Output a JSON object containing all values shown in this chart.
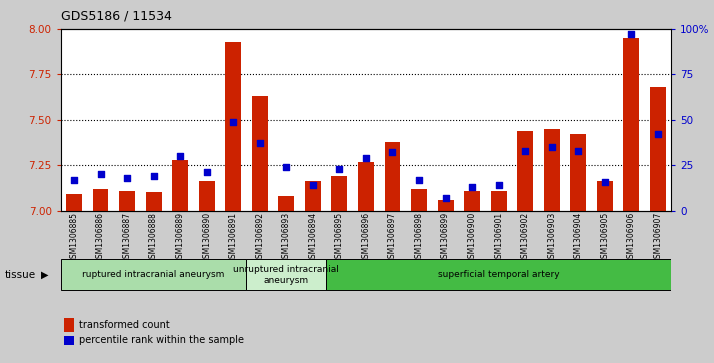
{
  "title": "GDS5186 / 11534",
  "samples": [
    "GSM1306885",
    "GSM1306886",
    "GSM1306887",
    "GSM1306888",
    "GSM1306889",
    "GSM1306890",
    "GSM1306891",
    "GSM1306892",
    "GSM1306893",
    "GSM1306894",
    "GSM1306895",
    "GSM1306896",
    "GSM1306897",
    "GSM1306898",
    "GSM1306899",
    "GSM1306900",
    "GSM1306901",
    "GSM1306902",
    "GSM1306903",
    "GSM1306904",
    "GSM1306905",
    "GSM1306906",
    "GSM1306907"
  ],
  "transformed_count": [
    7.09,
    7.12,
    7.11,
    7.1,
    7.28,
    7.16,
    7.93,
    7.63,
    7.08,
    7.16,
    7.19,
    7.27,
    7.38,
    7.12,
    7.06,
    7.11,
    7.11,
    7.44,
    7.45,
    7.42,
    7.16,
    7.95,
    7.68
  ],
  "percentile_rank": [
    17,
    20,
    18,
    19,
    30,
    21,
    49,
    37,
    24,
    14,
    23,
    29,
    32,
    17,
    7,
    13,
    14,
    33,
    35,
    33,
    16,
    97,
    42
  ],
  "groups": [
    {
      "label": "ruptured intracranial aneurysm",
      "start": 0,
      "end": 7,
      "color": "#aaddaa"
    },
    {
      "label": "unruptured intracranial\naneurysm",
      "start": 7,
      "end": 10,
      "color": "#cceecc"
    },
    {
      "label": "superficial temporal artery",
      "start": 10,
      "end": 23,
      "color": "#44bb44"
    }
  ],
  "ylim_left": [
    7.0,
    8.0
  ],
  "ylim_right": [
    0,
    100
  ],
  "yticks_left": [
    7.0,
    7.25,
    7.5,
    7.75,
    8.0
  ],
  "yticks_right": [
    0,
    25,
    50,
    75,
    100
  ],
  "bar_color": "#cc2200",
  "dot_color": "#0000cc",
  "bg_color": "#cccccc",
  "plot_bg": "#ffffff",
  "left_tick_color": "#cc2200",
  "right_tick_color": "#0000cc"
}
